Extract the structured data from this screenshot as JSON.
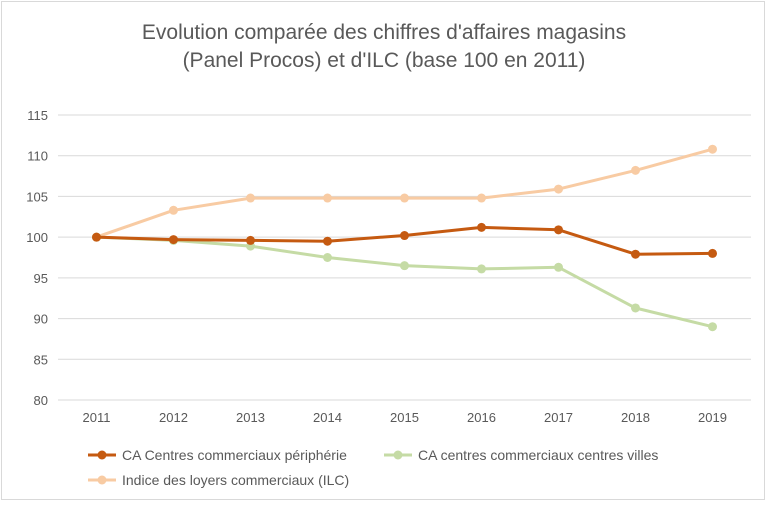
{
  "chart_data": {
    "type": "line",
    "title_lines": [
      "Evolution comparée des chiffres d'affaires magasins",
      "(Panel Procos) et d'ILC (base 100 en 2011)"
    ],
    "xlabel": "",
    "ylabel": "",
    "x": [
      "2011",
      "2012",
      "2013",
      "2014",
      "2015",
      "2016",
      "2017",
      "2018",
      "2019"
    ],
    "yticks": [
      "80",
      "85",
      "90",
      "95",
      "100",
      "105",
      "110",
      "115"
    ],
    "ylim": [
      80,
      115
    ],
    "grid": true,
    "legend_position": "bottom",
    "series": [
      {
        "name": "CA Centres commerciaux périphérie",
        "color": "#c55a11",
        "values": [
          100,
          99.7,
          99.6,
          99.5,
          100.2,
          101.2,
          100.9,
          97.9,
          98.0
        ]
      },
      {
        "name": "CA centres commerciaux centres villes",
        "color": "#c5dba5",
        "values": [
          100,
          99.6,
          98.9,
          97.5,
          96.5,
          96.1,
          96.3,
          91.3,
          89.0
        ]
      },
      {
        "name": "Indice des loyers commerciaux (ILC)",
        "color": "#f8cba3",
        "values": [
          100,
          103.3,
          104.8,
          104.8,
          104.8,
          104.8,
          105.9,
          108.2,
          110.8
        ]
      }
    ]
  }
}
